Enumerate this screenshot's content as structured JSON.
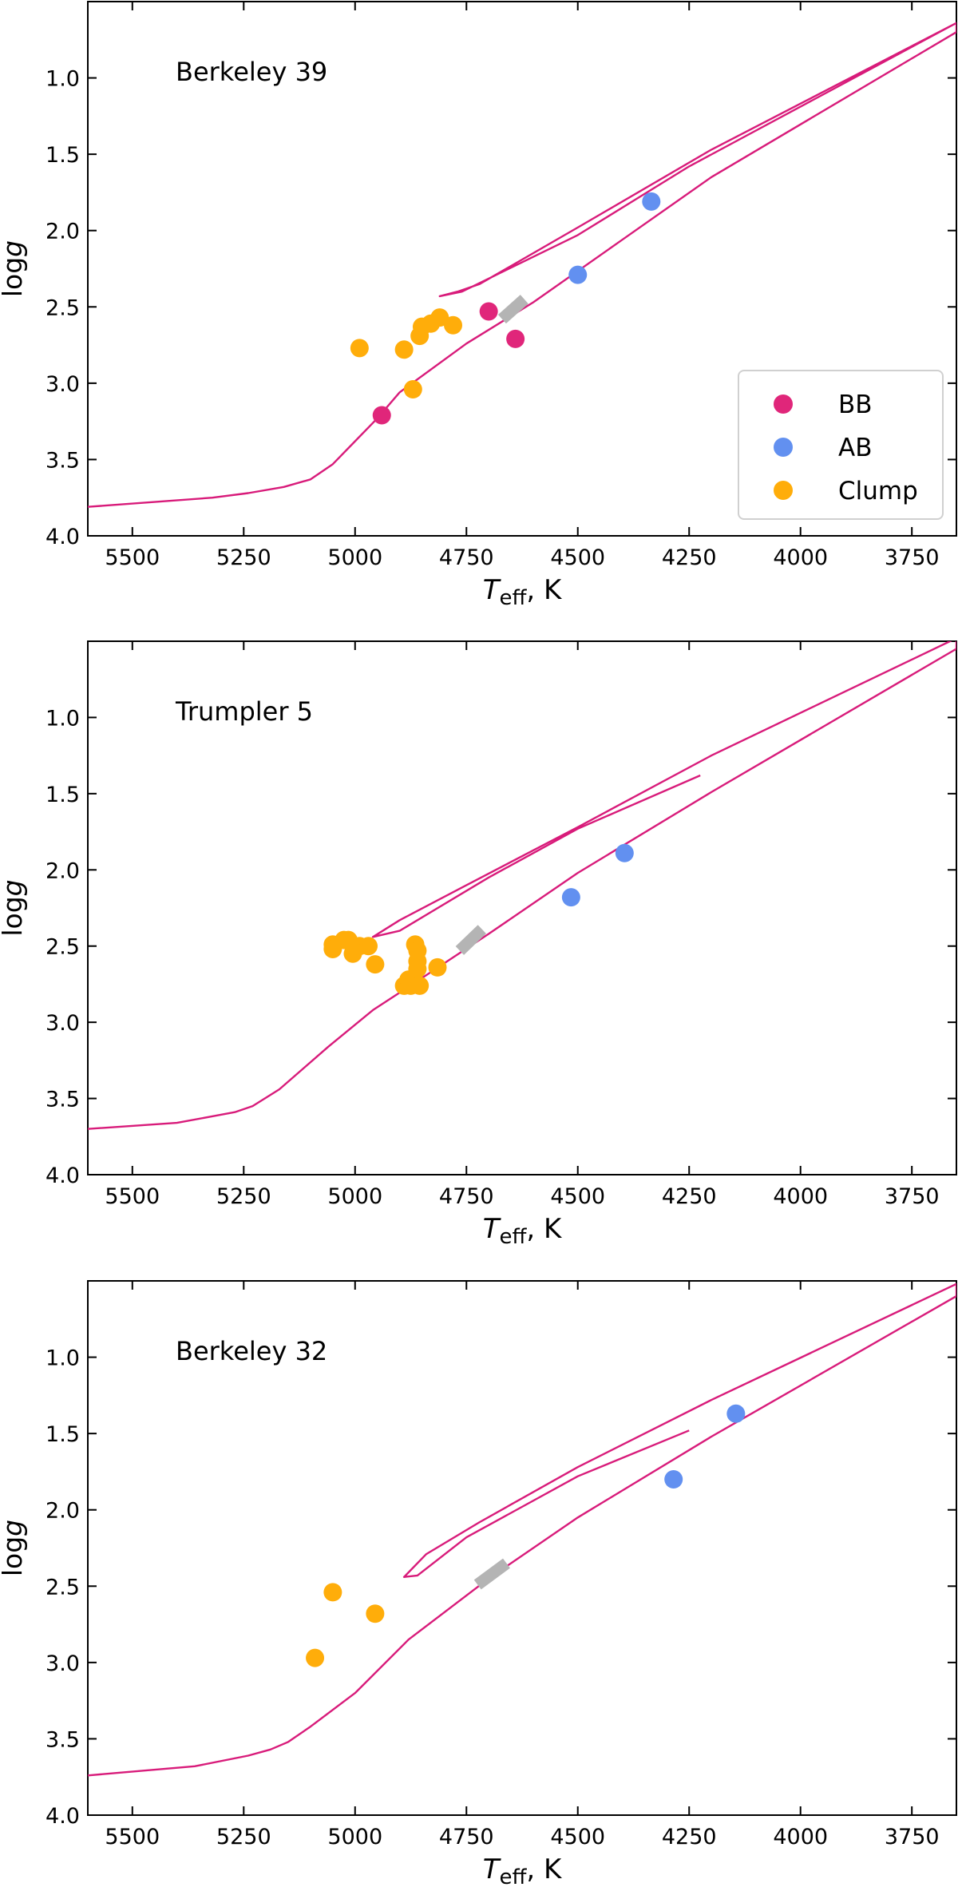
{
  "chart_data": [
    {
      "type": "scatter",
      "title": "Berkeley 39",
      "xlabel": "T_eff, K",
      "xlabel_main": "T",
      "xlabel_sub": "eff",
      "xlabel_unit": ", K",
      "ylabel": "logg",
      "ylabel_main": "log",
      "ylabel_italic": "g",
      "xlim": [
        5600,
        3650
      ],
      "ylim": [
        4.0,
        0.5
      ],
      "xticks": [
        5500,
        5250,
        5000,
        4750,
        4500,
        4250,
        4000,
        3750
      ],
      "yticks": [
        1.0,
        1.5,
        2.0,
        2.5,
        3.0,
        3.5,
        4.0
      ],
      "xtick_labels": [
        "5500",
        "5250",
        "5000",
        "4750",
        "4500",
        "4250",
        "4000",
        "3750"
      ],
      "ytick_labels": [
        "1.0",
        "1.5",
        "2.0",
        "2.5",
        "3.0",
        "3.5",
        "4.0"
      ],
      "grid": false,
      "legend": {
        "position": "bottom-right",
        "entries": [
          "BB",
          "AB",
          "Clump"
        ]
      },
      "series": [
        {
          "name": "BB",
          "color": "#e0267a",
          "points": [
            [
              4940,
              3.21
            ],
            [
              4700,
              2.53
            ],
            [
              4640,
              2.71
            ]
          ]
        },
        {
          "name": "AB",
          "color": "#6290f0",
          "points": [
            [
              4500,
              2.29
            ],
            [
              4335,
              1.81
            ]
          ]
        },
        {
          "name": "Clump",
          "color": "#ffad0a",
          "points": [
            [
              4990,
              2.77
            ],
            [
              4890,
              2.78
            ],
            [
              4870,
              3.04
            ],
            [
              4855,
              2.69
            ],
            [
              4850,
              2.63
            ],
            [
              4830,
              2.61
            ],
            [
              4810,
              2.57
            ],
            [
              4780,
              2.62
            ]
          ]
        }
      ],
      "isochrone": {
        "color": "#d81b7a",
        "points": [
          [
            5600,
            3.81
          ],
          [
            5320,
            3.75
          ],
          [
            5240,
            3.72
          ],
          [
            5160,
            3.68
          ],
          [
            5100,
            3.63
          ],
          [
            5050,
            3.53
          ],
          [
            5000,
            3.38
          ],
          [
            4950,
            3.23
          ],
          [
            4900,
            3.06
          ],
          [
            4750,
            2.74
          ],
          [
            4600,
            2.47
          ],
          [
            4400,
            2.06
          ],
          [
            4200,
            1.65
          ],
          [
            3650,
            0.7
          ],
          [
            3650,
            0.64
          ],
          [
            4200,
            1.47
          ],
          [
            4500,
            1.98
          ],
          [
            4720,
            2.35
          ],
          [
            4770,
            2.4
          ],
          [
            4810,
            2.43
          ],
          [
            4760,
            2.4
          ],
          [
            4500,
            2.03
          ],
          [
            4250,
            1.58
          ],
          [
            3650,
            0.64
          ]
        ]
      },
      "clump_marker": {
        "color": "#b4b4b4",
        "points": [
          [
            4670,
            2.58
          ],
          [
            4620,
            2.45
          ]
        ]
      }
    },
    {
      "type": "scatter",
      "title": "Trumpler 5",
      "xlabel": "T_eff, K",
      "xlabel_main": "T",
      "xlabel_sub": "eff",
      "xlabel_unit": ", K",
      "ylabel": "logg",
      "ylabel_main": "log",
      "ylabel_italic": "g",
      "xlim": [
        5600,
        3650
      ],
      "ylim": [
        4.0,
        0.5
      ],
      "xticks": [
        5500,
        5250,
        5000,
        4750,
        4500,
        4250,
        4000,
        3750
      ],
      "yticks": [
        1.0,
        1.5,
        2.0,
        2.5,
        3.0,
        3.5,
        4.0
      ],
      "xtick_labels": [
        "5500",
        "5250",
        "5000",
        "4750",
        "4500",
        "4250",
        "4000",
        "3750"
      ],
      "ytick_labels": [
        "1.0",
        "1.5",
        "2.0",
        "2.5",
        "3.0",
        "3.5",
        "4.0"
      ],
      "grid": false,
      "legend": null,
      "series": [
        {
          "name": "AB",
          "color": "#6290f0",
          "points": [
            [
              4515,
              2.18
            ],
            [
              4395,
              1.89
            ]
          ]
        },
        {
          "name": "Clump",
          "color": "#ffad0a",
          "points": [
            [
              5050,
              2.49
            ],
            [
              5050,
              2.52
            ],
            [
              5025,
              2.46
            ],
            [
              5015,
              2.46
            ],
            [
              5005,
              2.55
            ],
            [
              4990,
              2.5
            ],
            [
              4970,
              2.5
            ],
            [
              4955,
              2.62
            ],
            [
              4890,
              2.76
            ],
            [
              4880,
              2.72
            ],
            [
              4875,
              2.76
            ],
            [
              4865,
              2.49
            ],
            [
              4860,
              2.53
            ],
            [
              4860,
              2.6
            ],
            [
              4860,
              2.65
            ],
            [
              4855,
              2.76
            ],
            [
              4815,
              2.64
            ]
          ]
        }
      ],
      "isochrone": {
        "color": "#d81b7a",
        "points": [
          [
            5600,
            3.7
          ],
          [
            5400,
            3.66
          ],
          [
            5270,
            3.59
          ],
          [
            5230,
            3.55
          ],
          [
            5170,
            3.44
          ],
          [
            5060,
            3.16
          ],
          [
            4960,
            2.92
          ],
          [
            4850,
            2.71
          ],
          [
            4700,
            2.42
          ],
          [
            4500,
            2.02
          ],
          [
            4200,
            1.49
          ],
          [
            3650,
            0.55
          ],
          [
            3650,
            0.48
          ],
          [
            4200,
            1.25
          ],
          [
            4500,
            1.72
          ],
          [
            4750,
            2.1
          ],
          [
            4900,
            2.33
          ],
          [
            4960,
            2.44
          ],
          [
            4900,
            2.4
          ],
          [
            4700,
            2.05
          ],
          [
            4500,
            1.73
          ],
          [
            4225,
            1.38
          ]
        ]
      },
      "clump_marker": {
        "color": "#b4b4b4",
        "points": [
          [
            4765,
            2.53
          ],
          [
            4715,
            2.39
          ]
        ]
      }
    },
    {
      "type": "scatter",
      "title": "Berkeley 32",
      "xlabel": "T_eff, K",
      "xlabel_main": "T",
      "xlabel_sub": "eff",
      "xlabel_unit": ", K",
      "ylabel": "logg",
      "ylabel_main": "log",
      "ylabel_italic": "g",
      "xlim": [
        5600,
        3650
      ],
      "ylim": [
        4.0,
        0.5
      ],
      "xticks": [
        5500,
        5250,
        5000,
        4750,
        4500,
        4250,
        4000,
        3750
      ],
      "yticks": [
        1.0,
        1.5,
        2.0,
        2.5,
        3.0,
        3.5,
        4.0
      ],
      "xtick_labels": [
        "5500",
        "5250",
        "5000",
        "4750",
        "4500",
        "4250",
        "4000",
        "3750"
      ],
      "ytick_labels": [
        "1.0",
        "1.5",
        "2.0",
        "2.5",
        "3.0",
        "3.5",
        "4.0"
      ],
      "grid": false,
      "legend": null,
      "series": [
        {
          "name": "AB",
          "color": "#6290f0",
          "points": [
            [
              4285,
              1.8
            ],
            [
              4145,
              1.37
            ]
          ]
        },
        {
          "name": "Clump",
          "color": "#ffad0a",
          "points": [
            [
              5050,
              2.54
            ],
            [
              4955,
              2.68
            ],
            [
              5090,
              2.97
            ]
          ]
        }
      ],
      "isochrone": {
        "color": "#d81b7a",
        "points": [
          [
            5600,
            3.74
          ],
          [
            5360,
            3.68
          ],
          [
            5240,
            3.61
          ],
          [
            5190,
            3.57
          ],
          [
            5150,
            3.52
          ],
          [
            5100,
            3.42
          ],
          [
            5000,
            3.2
          ],
          [
            4880,
            2.85
          ],
          [
            4700,
            2.45
          ],
          [
            4500,
            2.05
          ],
          [
            4200,
            1.52
          ],
          [
            3650,
            0.6
          ],
          [
            3650,
            0.52
          ],
          [
            4200,
            1.28
          ],
          [
            4500,
            1.72
          ],
          [
            4720,
            2.08
          ],
          [
            4840,
            2.29
          ],
          [
            4890,
            2.44
          ],
          [
            4860,
            2.43
          ],
          [
            4750,
            2.18
          ],
          [
            4500,
            1.78
          ],
          [
            4250,
            1.48
          ]
        ]
      },
      "clump_marker": {
        "color": "#b4b4b4",
        "points": [
          [
            4725,
            2.49
          ],
          [
            4660,
            2.35
          ]
        ]
      }
    }
  ]
}
